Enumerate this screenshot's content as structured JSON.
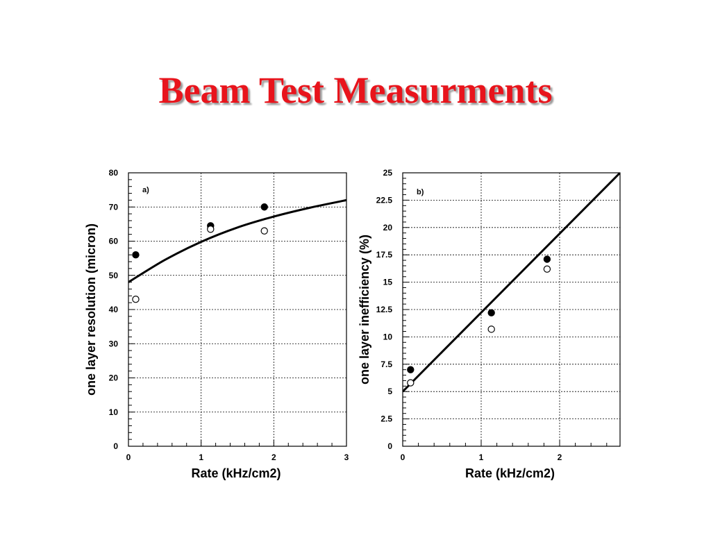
{
  "slide": {
    "title": "Beam Test Measurments"
  },
  "chart_data": [
    {
      "type": "scatter",
      "panel_label": "a)",
      "title": "",
      "xlabel": "Rate (kHz/cm2)",
      "ylabel": "one layer resolution (micron)",
      "xlim": [
        0,
        3
      ],
      "ylim": [
        0,
        80
      ],
      "x_ticks": [
        0,
        1,
        2,
        3
      ],
      "y_ticks": [
        0,
        10,
        20,
        30,
        40,
        50,
        60,
        70,
        80
      ],
      "x_minor_step": 0.2,
      "y_minor_step": 2,
      "grid": true,
      "series": [
        {
          "marker": "filled",
          "points": [
            [
              0.1,
              56
            ],
            [
              1.13,
              64.5
            ],
            [
              1.87,
              70
            ]
          ]
        },
        {
          "marker": "open",
          "points": [
            [
              0.1,
              43
            ],
            [
              1.13,
              63.5
            ],
            [
              1.87,
              63
            ]
          ]
        }
      ],
      "fit_curve": {
        "style": "solid",
        "points": [
          [
            0,
            48
          ],
          [
            0.5,
            54.5
          ],
          [
            1,
            59.8
          ],
          [
            1.5,
            64
          ],
          [
            2,
            67.2
          ],
          [
            2.5,
            69.8
          ],
          [
            3,
            72
          ]
        ]
      }
    },
    {
      "type": "scatter",
      "panel_label": "b)",
      "title": "",
      "xlabel": "Rate (kHz/cm2)",
      "ylabel": "one layer inefficiency (%)",
      "xlim": [
        0,
        2.77
      ],
      "ylim": [
        0,
        25
      ],
      "x_ticks": [
        0,
        1,
        2
      ],
      "y_ticks": [
        0,
        2.5,
        5,
        7.5,
        10,
        12.5,
        15,
        17.5,
        20,
        22.5,
        25
      ],
      "y_tick_labels": [
        "0",
        "2.5",
        "5",
        "7.5",
        "10",
        "12.5",
        "15",
        "17.5",
        "20",
        "22.5",
        "25"
      ],
      "x_minor_step": 0.2,
      "y_minor_step": 0.5,
      "grid": true,
      "series": [
        {
          "marker": "filled",
          "points": [
            [
              0.1,
              7
            ],
            [
              1.13,
              12.2
            ],
            [
              1.84,
              17.1
            ]
          ]
        },
        {
          "marker": "open",
          "points": [
            [
              0.1,
              5.8
            ],
            [
              1.13,
              10.7
            ],
            [
              1.84,
              16.2
            ]
          ]
        }
      ],
      "fit_curve": {
        "style": "solid",
        "points": [
          [
            0,
            5
          ],
          [
            2.77,
            25
          ]
        ]
      }
    }
  ]
}
